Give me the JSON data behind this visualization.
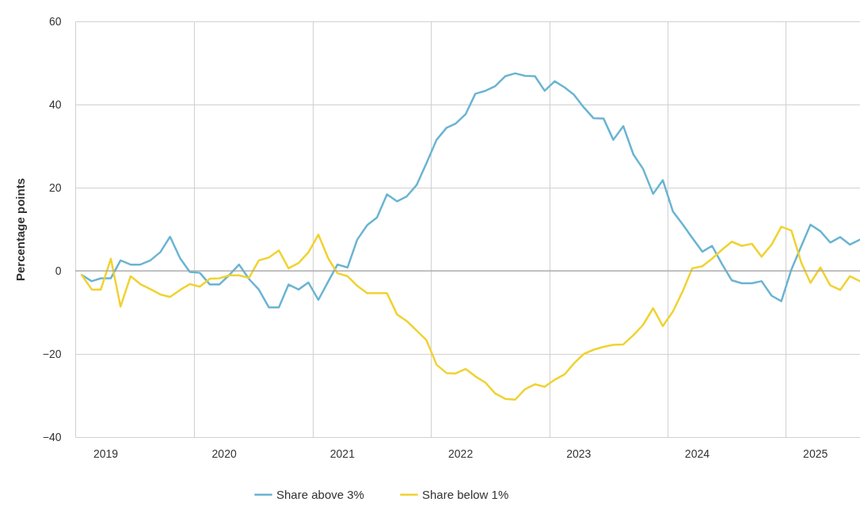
{
  "chart_data": {
    "type": "line",
    "ylabel": "Percentage points",
    "x": [
      "2019-01",
      "2019-02",
      "2019-03",
      "2019-04",
      "2019-05",
      "2019-06",
      "2019-07",
      "2019-08",
      "2019-09",
      "2019-10",
      "2019-11",
      "2019-12",
      "2020-01",
      "2020-02",
      "2020-03",
      "2020-04",
      "2020-05",
      "2020-06",
      "2020-07",
      "2020-08",
      "2020-09",
      "2020-10",
      "2020-11",
      "2020-12",
      "2021-01",
      "2021-02",
      "2021-03",
      "2021-04",
      "2021-05",
      "2021-06",
      "2021-07",
      "2021-08",
      "2021-09",
      "2021-10",
      "2021-11",
      "2021-12",
      "2022-01",
      "2022-02",
      "2022-03",
      "2022-04",
      "2022-05",
      "2022-06",
      "2022-07",
      "2022-08",
      "2022-09",
      "2022-10",
      "2022-11",
      "2022-12",
      "2023-01",
      "2023-02",
      "2023-03",
      "2023-04",
      "2023-05",
      "2023-06",
      "2023-07",
      "2023-08",
      "2023-09",
      "2023-10",
      "2023-11",
      "2023-12",
      "2024-01",
      "2024-02",
      "2024-03",
      "2024-04",
      "2024-05",
      "2024-06",
      "2024-07",
      "2024-08",
      "2024-09",
      "2024-10",
      "2024-11",
      "2024-12",
      "2025-01",
      "2025-02",
      "2025-03",
      "2025-04",
      "2025-05",
      "2025-06",
      "2025-07",
      "2025-08"
    ],
    "series": [
      {
        "name": "Share above 3%",
        "color": "#6ab4d2",
        "values": [
          -1,
          -2.5,
          -1.8,
          -1.8,
          2.5,
          1.5,
          1.5,
          2.5,
          4.5,
          8.2,
          3,
          -0.3,
          -0.5,
          -3.3,
          -3.3,
          -1,
          1.5,
          -2,
          -4.5,
          -8.8,
          -8.8,
          -3.3,
          -4.5,
          -2.8,
          -7,
          -2.5,
          1.5,
          0.8,
          7.5,
          11,
          12.8,
          18.4,
          16.7,
          17.9,
          20.7,
          25.9,
          31.5,
          34.4,
          35.4,
          37.7,
          42.6,
          43.3,
          44.4,
          46.8,
          47.5,
          46.9,
          46.8,
          43.3,
          45.6,
          44.1,
          42.4,
          39.3,
          36.7,
          36.6,
          31.5,
          34.8,
          28,
          24.5,
          18.5,
          21.8,
          14.3,
          11.1,
          7.9,
          4.6,
          6,
          1.6,
          -2.3,
          -3,
          -3,
          -2.5,
          -6,
          -7.3,
          0.3,
          6,
          11.1,
          9.5,
          6.8,
          8.1,
          6.3,
          7.5
        ]
      },
      {
        "name": "Share below 1%",
        "color": "#f0d232",
        "values": [
          -1,
          -4.5,
          -4.5,
          2.9,
          -8.6,
          -1.3,
          -3.2,
          -4.4,
          -5.7,
          -6.3,
          -4.6,
          -3.2,
          -3.8,
          -1.9,
          -1.8,
          -1.1,
          -1.1,
          -1.7,
          2.5,
          3.2,
          4.9,
          0.6,
          1.9,
          4.4,
          8.7,
          2.9,
          -0.6,
          -1.3,
          -3.6,
          -5.4,
          -5.4,
          -5.4,
          -10.5,
          -12.1,
          -14.4,
          -16.7,
          -22.6,
          -24.6,
          -24.7,
          -23.6,
          -25.4,
          -26.9,
          -29.5,
          -30.8,
          -31,
          -28.5,
          -27.3,
          -27.9,
          -26.2,
          -24.9,
          -22.3,
          -20,
          -19,
          -18.3,
          -17.8,
          -17.7,
          -15.5,
          -13,
          -9,
          -13.3,
          -9.8,
          -4.8,
          0.6,
          1.1,
          2.9,
          5.1,
          7,
          6,
          6.5,
          3.4,
          6.3,
          10.6,
          9.7,
          1.9,
          -2.9,
          0.8,
          -3.5,
          -4.6,
          -1.3,
          -2.5
        ]
      }
    ],
    "xlim": [
      "2018-12-12",
      "2025-08-01"
    ],
    "xticks": [
      {
        "value": "2019-03-15",
        "label": "2019"
      },
      {
        "value": "2019-12-15",
        "label": null
      },
      {
        "value": "2020-03-15",
        "label": "2020"
      },
      {
        "value": "2020-12-15",
        "label": null
      },
      {
        "value": "2021-03-15",
        "label": "2021"
      },
      {
        "value": "2021-12-15",
        "label": null
      },
      {
        "value": "2022-03-15",
        "label": "2022"
      },
      {
        "value": "2022-12-15",
        "label": null
      },
      {
        "value": "2023-03-15",
        "label": "2023"
      },
      {
        "value": "2023-12-15",
        "label": null
      },
      {
        "value": "2024-03-15",
        "label": "2024"
      },
      {
        "value": "2024-12-15",
        "label": null
      },
      {
        "value": "2025-03-15",
        "label": "2025"
      }
    ],
    "ylim": [
      -40,
      60
    ],
    "yticks": [
      -40,
      -20,
      0,
      20,
      40,
      60
    ],
    "ref_lines": [
      {
        "axis": "y",
        "value": 0,
        "color": "#999999"
      }
    ],
    "grid": true,
    "legend": "bottom",
    "marker": "none",
    "line_style": "solid"
  }
}
